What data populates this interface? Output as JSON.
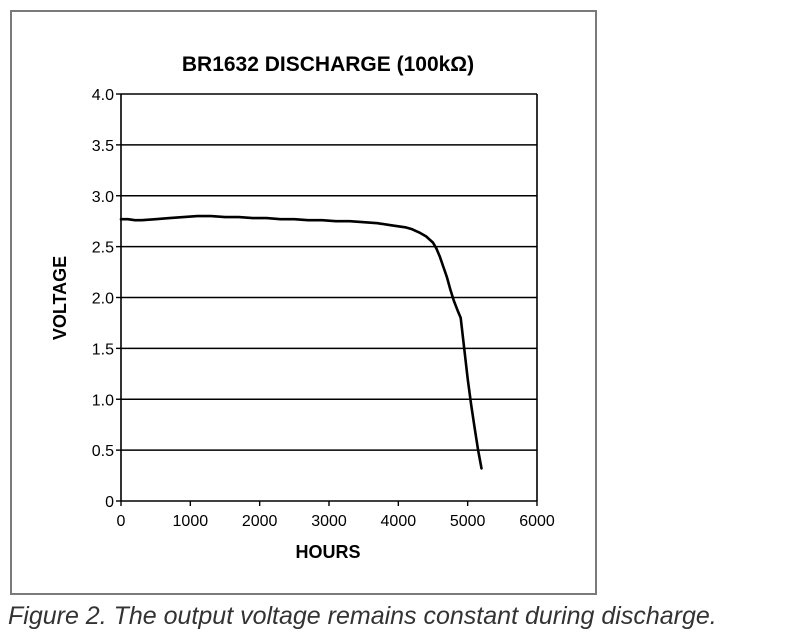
{
  "chart_data": {
    "type": "line",
    "title": "BR1632  DISCHARGE (100kΩ)",
    "xlabel": "HOURS",
    "ylabel": "VOLTAGE",
    "xlim": [
      0,
      6000
    ],
    "ylim": [
      0,
      4.0
    ],
    "x_ticks": [
      "0",
      "1000",
      "2000",
      "3000",
      "4000",
      "5000",
      "6000"
    ],
    "y_ticks": [
      "0",
      "0.5",
      "1.0",
      "1.5",
      "2.0",
      "2.5",
      "3.0",
      "3.5",
      "4.0"
    ],
    "grid": "horizontal",
    "legend": "none",
    "series": [
      {
        "x": [
          0,
          100,
          200,
          300,
          500,
          700,
          900,
          1100,
          1300,
          1500,
          1700,
          1900,
          2100,
          2300,
          2500,
          2700,
          2900,
          3100,
          3300,
          3500,
          3700,
          3900,
          4000,
          4100,
          4200,
          4300,
          4400,
          4500,
          4550,
          4600,
          4650,
          4700,
          4750,
          4800,
          4850,
          4900,
          4950,
          5000,
          5050,
          5100,
          5150,
          5200
        ],
        "y": [
          2.77,
          2.77,
          2.76,
          2.76,
          2.77,
          2.78,
          2.79,
          2.8,
          2.8,
          2.79,
          2.79,
          2.78,
          2.78,
          2.77,
          2.77,
          2.76,
          2.76,
          2.75,
          2.75,
          2.74,
          2.73,
          2.71,
          2.7,
          2.69,
          2.67,
          2.64,
          2.6,
          2.54,
          2.48,
          2.4,
          2.3,
          2.2,
          2.08,
          1.97,
          1.88,
          1.8,
          1.5,
          1.2,
          0.95,
          0.72,
          0.5,
          0.32
        ]
      }
    ]
  },
  "caption": "Figure 2. The output voltage remains constant during discharge."
}
